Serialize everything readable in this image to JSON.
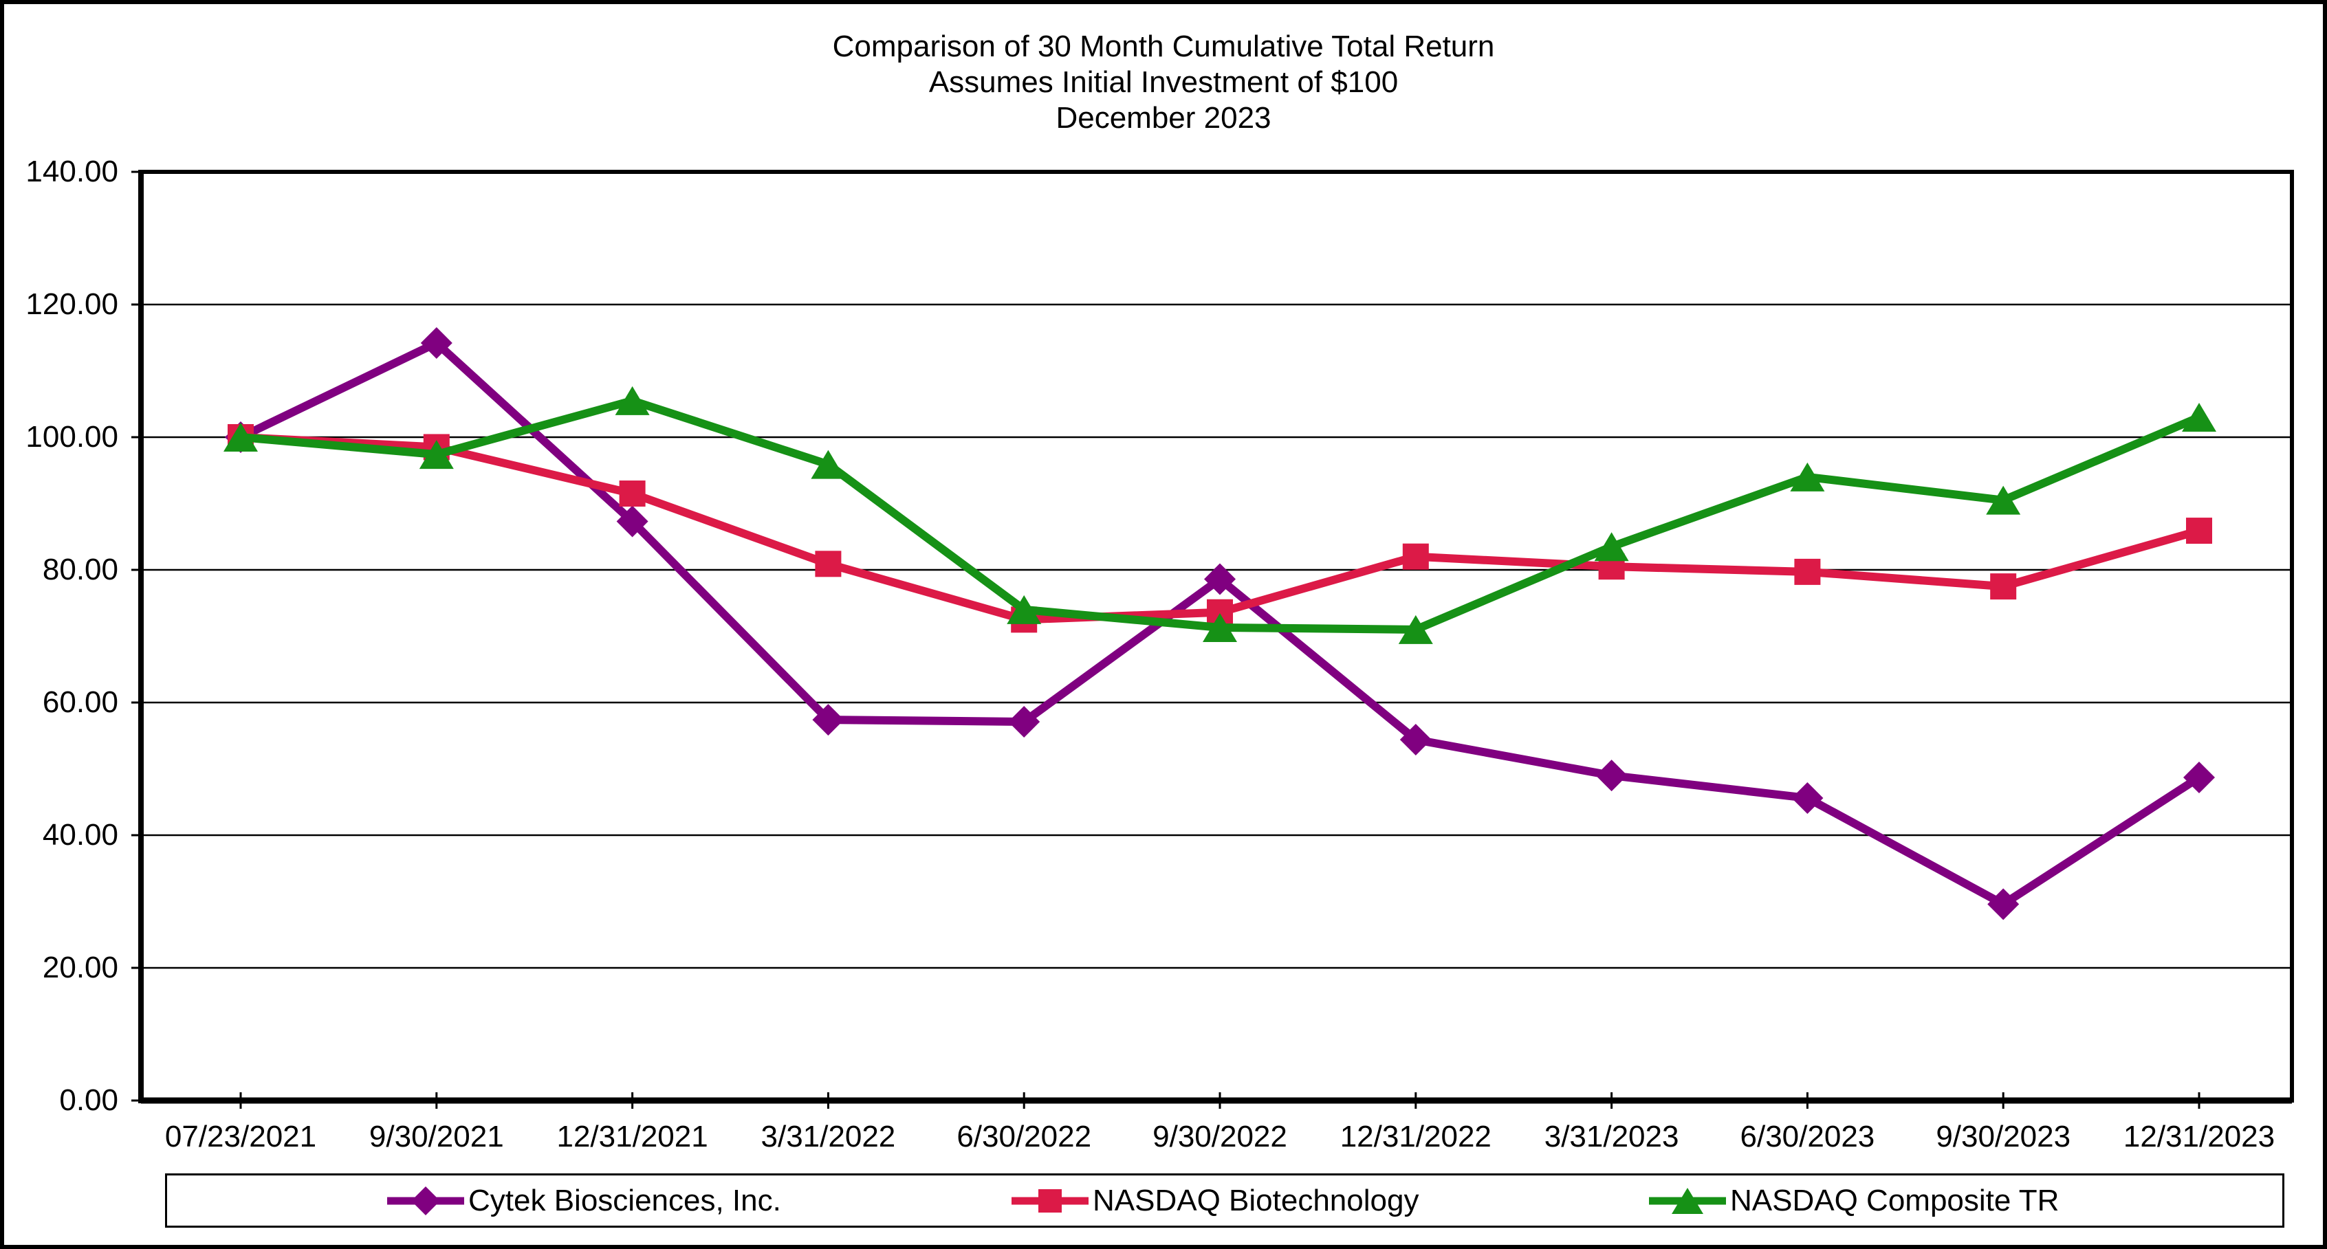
{
  "title": {
    "line1": "Comparison of 30 Month Cumulative Total Return",
    "line2": "Assumes Initial Investment of $100",
    "line3": "December 2023"
  },
  "chart_data": {
    "type": "line",
    "categories": [
      "07/23/2021",
      "9/30/2021",
      "12/31/2021",
      "3/31/2022",
      "6/30/2022",
      "9/30/2022",
      "12/31/2022",
      "3/31/2023",
      "6/30/2023",
      "9/30/2023",
      "12/31/2023"
    ],
    "series": [
      {
        "name": "Cytek Biosciences, Inc.",
        "color": "#800080",
        "marker": "diamond",
        "values": [
          100.0,
          114.2,
          87.3,
          57.4,
          57.1,
          78.6,
          54.4,
          49.0,
          45.6,
          29.6,
          48.7
        ]
      },
      {
        "name": "NASDAQ Biotechnology",
        "color": "#DC1A47",
        "marker": "square",
        "values": [
          100.0,
          98.5,
          91.5,
          80.9,
          72.5,
          73.6,
          82.0,
          80.5,
          79.7,
          77.5,
          85.9
        ]
      },
      {
        "name": "NASDAQ Composite TR",
        "color": "#169116",
        "marker": "triangle",
        "values": [
          100.0,
          97.4,
          105.5,
          95.9,
          74.0,
          71.3,
          71.0,
          83.5,
          94.0,
          90.5,
          103.0
        ]
      }
    ],
    "ylim": [
      0,
      140
    ],
    "ytick_step": 20,
    "ytick_labels": [
      "140.00",
      "120.00",
      "100.00",
      "80.00",
      "60.00",
      "40.00",
      "20.00",
      "0.00"
    ],
    "grid": "horizontal",
    "legend_position": "bottom",
    "axis_color": "#000000",
    "background_color": "#FFFFFF"
  }
}
